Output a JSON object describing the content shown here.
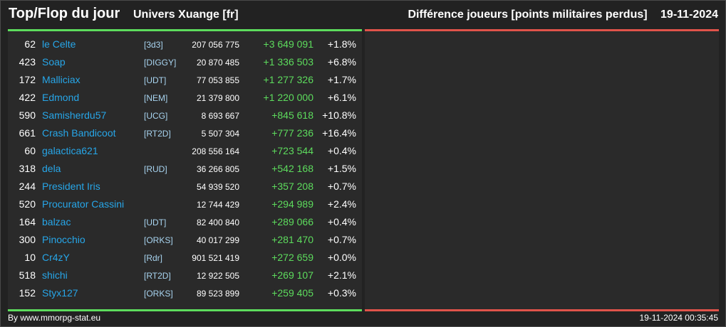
{
  "header": {
    "title": "Top/Flop du jour",
    "universe": "Univers Xuange [fr]",
    "category": "Différence joueurs [points militaires perdus]",
    "date": "19-11-2024"
  },
  "top_rows": [
    {
      "rank": "62",
      "name": "le Celte",
      "tag": "[3d3]",
      "points": "207 056 775",
      "diff": "+3 649 091",
      "pct": "+1.8%"
    },
    {
      "rank": "423",
      "name": "Soap",
      "tag": "[DIGGY]",
      "points": "20 870 485",
      "diff": "+1 336 503",
      "pct": "+6.8%"
    },
    {
      "rank": "172",
      "name": "Malliciax",
      "tag": "[UDT]",
      "points": "77 053 855",
      "diff": "+1 277 326",
      "pct": "+1.7%"
    },
    {
      "rank": "422",
      "name": "Edmond",
      "tag": "[NEM]",
      "points": "21 379 800",
      "diff": "+1 220 000",
      "pct": "+6.1%"
    },
    {
      "rank": "590",
      "name": "Samisherdu57",
      "tag": "[UCG]",
      "points": "8 693 667",
      "diff": "+845 618",
      "pct": "+10.8%"
    },
    {
      "rank": "661",
      "name": "Crash Bandicoot",
      "tag": "[RT2D]",
      "points": "5 507 304",
      "diff": "+777 236",
      "pct": "+16.4%"
    },
    {
      "rank": "60",
      "name": "galactica621",
      "tag": "",
      "points": "208 556 164",
      "diff": "+723 544",
      "pct": "+0.4%"
    },
    {
      "rank": "318",
      "name": "dela",
      "tag": "[RUD]",
      "points": "36 266 805",
      "diff": "+542 168",
      "pct": "+1.5%"
    },
    {
      "rank": "244",
      "name": "President Iris",
      "tag": "",
      "points": "54 939 520",
      "diff": "+357 208",
      "pct": "+0.7%"
    },
    {
      "rank": "520",
      "name": "Procurator Cassini",
      "tag": "",
      "points": "12 744 429",
      "diff": "+294 989",
      "pct": "+2.4%"
    },
    {
      "rank": "164",
      "name": "balzac",
      "tag": "[UDT]",
      "points": "82 400 840",
      "diff": "+289 066",
      "pct": "+0.4%"
    },
    {
      "rank": "300",
      "name": "Pinocchio",
      "tag": "[ORKS]",
      "points": "40 017 299",
      "diff": "+281 470",
      "pct": "+0.7%"
    },
    {
      "rank": "10",
      "name": "Cr4zY",
      "tag": "[Rdr]",
      "points": "901 521 419",
      "diff": "+272 659",
      "pct": "+0.0%"
    },
    {
      "rank": "518",
      "name": "shichi",
      "tag": "[RT2D]",
      "points": "12 922 505",
      "diff": "+269 107",
      "pct": "+2.1%"
    },
    {
      "rank": "152",
      "name": "Styx127",
      "tag": "[ORKS]",
      "points": "89 523 899",
      "diff": "+259 405",
      "pct": "+0.3%"
    }
  ],
  "footer": {
    "credit": "By www.mmorpg-stat.eu",
    "timestamp": "19-11-2024 00:35:45"
  },
  "colors": {
    "top_accent": "#5ddc5d",
    "flop_accent": "#e0534a",
    "name_link": "#27a6e8",
    "tag": "#a8d4f0",
    "background": "#222222",
    "panel": "#2a2a2a"
  }
}
